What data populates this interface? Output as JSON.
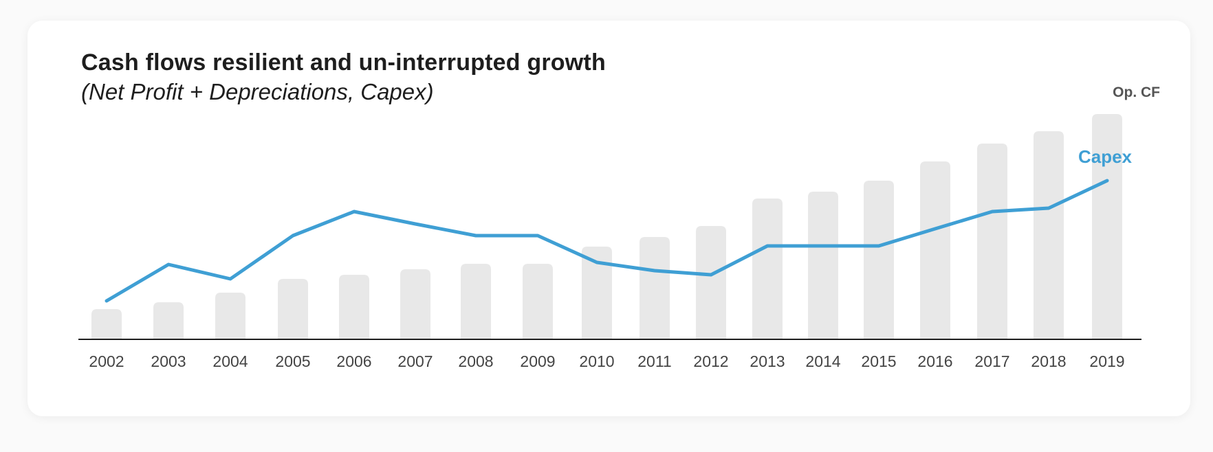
{
  "header": {
    "title": "Cash flows resilient and un-interrupted growth",
    "subtitle": "(Net Profit + Depreciations, Capex)"
  },
  "colors": {
    "bar": "#e8e8e8",
    "line": "#3f9fd4",
    "axis": "#1e1e1e"
  },
  "chart_data": {
    "type": "bar",
    "categories": [
      "2002",
      "2003",
      "2004",
      "2005",
      "2006",
      "2007",
      "2008",
      "2009",
      "2010",
      "2011",
      "2012",
      "2013",
      "2014",
      "2015",
      "2016",
      "2017",
      "2018",
      "2019"
    ],
    "series": [
      {
        "name": "Op. CF",
        "type": "bar",
        "values": [
          44,
          54,
          68,
          88,
          94,
          102,
          110,
          110,
          135,
          149,
          165,
          205,
          215,
          231,
          259,
          285,
          303,
          328
        ]
      },
      {
        "name": "Capex",
        "type": "line",
        "values": [
          56,
          109,
          88,
          151,
          186,
          168,
          151,
          151,
          112,
          100,
          94,
          136,
          136,
          136,
          161,
          186,
          191,
          231
        ]
      }
    ],
    "ylim": [
      0,
      340
    ],
    "grid": false,
    "legend": "inline labels at end of series"
  }
}
